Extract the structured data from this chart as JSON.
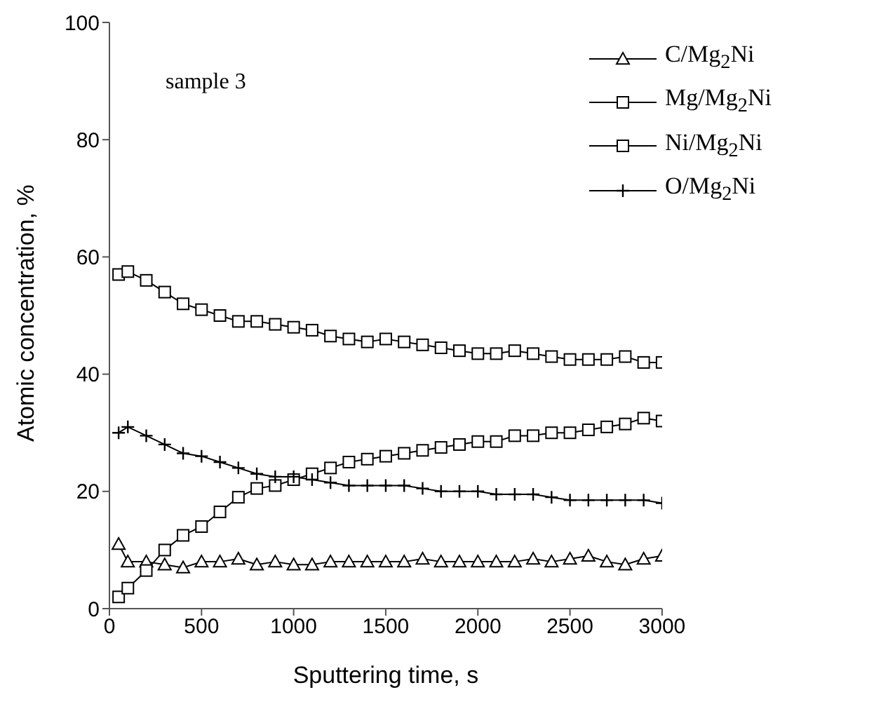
{
  "chart_data": {
    "type": "line",
    "xlabel": "Sputtering time, s",
    "ylabel": "Atomic concentration, %",
    "annotations": [
      "sample 3"
    ],
    "x": [
      50,
      100,
      200,
      300,
      400,
      500,
      600,
      700,
      800,
      900,
      1000,
      1100,
      1200,
      1300,
      1400,
      1500,
      1600,
      1700,
      1800,
      1900,
      2000,
      2100,
      2200,
      2300,
      2400,
      2500,
      2600,
      2700,
      2800,
      2900,
      3000
    ],
    "series": [
      {
        "name": "C/Mg$_{2}$Ni",
        "color": "#000000",
        "marker": "triangle",
        "values": [
          11,
          8,
          8,
          7.5,
          7,
          8,
          8,
          8.5,
          7.5,
          8,
          7.5,
          7.5,
          8,
          8,
          8,
          8,
          8,
          8.5,
          8,
          8,
          8,
          8,
          8,
          8.5,
          8,
          8.5,
          9,
          8,
          7.5,
          8.5,
          9
        ]
      },
      {
        "name": "Mg/Mg$_{2}$Ni",
        "color": "#000000",
        "marker": "square",
        "values": [
          57,
          57.5,
          56,
          54,
          52,
          51,
          50,
          49,
          49,
          48.5,
          48,
          47.5,
          46.5,
          46,
          45.5,
          46,
          45.5,
          45,
          44.5,
          44,
          43.5,
          43.5,
          44,
          43.5,
          43,
          42.5,
          42.5,
          42.5,
          43,
          42,
          42
        ]
      },
      {
        "name": "Ni/Mg$_{2}$Ni",
        "color": "#000000",
        "marker": "square",
        "values": [
          2,
          3.5,
          6.5,
          10,
          12.5,
          14,
          16.5,
          19,
          20.5,
          21,
          22,
          23,
          24,
          25,
          25.5,
          26,
          26.5,
          27,
          27.5,
          28,
          28.5,
          28.5,
          29.5,
          29.5,
          30,
          30,
          30.5,
          31,
          31.5,
          32.5,
          32
        ]
      },
      {
        "name": "O/Mg$_{2}$Ni",
        "color": "#000000",
        "marker": "cross",
        "values": [
          30,
          31,
          29.5,
          28,
          26.5,
          26,
          25,
          24,
          23,
          22.5,
          22.5,
          22,
          21.5,
          21,
          21,
          21,
          21,
          20.5,
          20,
          20,
          20,
          19.5,
          19.5,
          19.5,
          19,
          18.5,
          18.5,
          18.5,
          18.5,
          18.5,
          18
        ]
      }
    ],
    "xlim": [
      0,
      3000
    ],
    "xticks": [
      0,
      500,
      1000,
      1500,
      2000,
      2500,
      3000
    ],
    "ylim": [
      0,
      100
    ],
    "yticks": [
      0,
      20,
      40,
      60,
      80,
      100
    ],
    "grid": false,
    "legend": "top right",
    "line_style": "solid"
  }
}
